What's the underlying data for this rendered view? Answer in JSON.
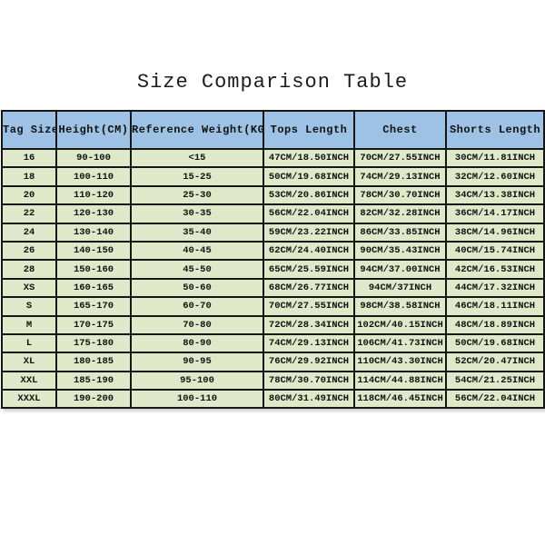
{
  "page": {
    "title": "Size Comparison Table"
  },
  "colors": {
    "header_bg": "#9dc2e6",
    "row_bg": "#dfe8c8",
    "border": "#161616",
    "background": "#ffffff",
    "text": "#111111"
  },
  "chart_data": {
    "type": "table",
    "title": "Size Comparison Table",
    "columns": [
      "Tag Size",
      "Height(CM)",
      "Reference Weight(KG)",
      "Tops Length",
      "Chest",
      "Shorts Length"
    ],
    "rows": [
      [
        "16",
        "90-100",
        "<15",
        "47CM/18.50INCH",
        "70CM/27.55INCH",
        "30CM/11.81INCH"
      ],
      [
        "18",
        "100-110",
        "15-25",
        "50CM/19.68INCH",
        "74CM/29.13INCH",
        "32CM/12.60INCH"
      ],
      [
        "20",
        "110-120",
        "25-30",
        "53CM/20.86INCH",
        "78CM/30.70INCH",
        "34CM/13.38INCH"
      ],
      [
        "22",
        "120-130",
        "30-35",
        "56CM/22.04INCH",
        "82CM/32.28INCH",
        "36CM/14.17INCH"
      ],
      [
        "24",
        "130-140",
        "35-40",
        "59CM/23.22INCH",
        "86CM/33.85INCH",
        "38CM/14.96INCH"
      ],
      [
        "26",
        "140-150",
        "40-45",
        "62CM/24.40INCH",
        "90CM/35.43INCH",
        "40CM/15.74INCH"
      ],
      [
        "28",
        "150-160",
        "45-50",
        "65CM/25.59INCH",
        "94CM/37.00INCH",
        "42CM/16.53INCH"
      ],
      [
        "XS",
        "160-165",
        "50-60",
        "68CM/26.77INCH",
        "94CM/37INCH",
        "44CM/17.32INCH"
      ],
      [
        "S",
        "165-170",
        "60-70",
        "70CM/27.55INCH",
        "98CM/38.58INCH",
        "46CM/18.11INCH"
      ],
      [
        "M",
        "170-175",
        "70-80",
        "72CM/28.34INCH",
        "102CM/40.15INCH",
        "48CM/18.89INCH"
      ],
      [
        "L",
        "175-180",
        "80-90",
        "74CM/29.13INCH",
        "106CM/41.73INCH",
        "50CM/19.68INCH"
      ],
      [
        "XL",
        "180-185",
        "90-95",
        "76CM/29.92INCH",
        "110CM/43.30INCH",
        "52CM/20.47INCH"
      ],
      [
        "XXL",
        "185-190",
        "95-100",
        "78CM/30.70INCH",
        "114CM/44.88INCH",
        "54CM/21.25INCH"
      ],
      [
        "XXXL",
        "190-200",
        "100-110",
        "80CM/31.49INCH",
        "118CM/46.45INCH",
        "56CM/22.04INCH"
      ]
    ]
  }
}
